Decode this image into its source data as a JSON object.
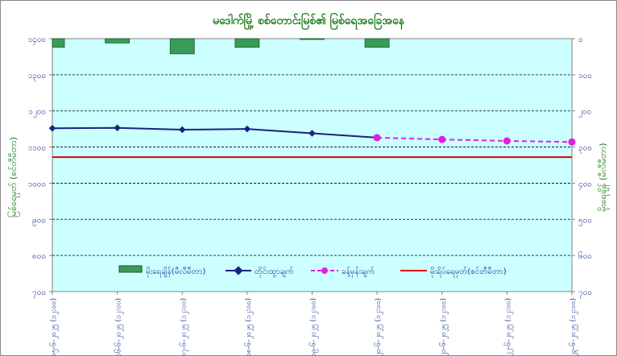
{
  "chart_data": {
    "type": "line",
    "title": "မဒေါက်မြို့ စစ်တောင်းမြစ်၏ မြစ်ရေအခြေအနေ",
    "ylabel_left": "မြစ်ရေမှတ် (စင်တီမီတာ)",
    "ylabel_right": "မိုးရေချိန် (မီလီမီတာ)",
    "y_left_ticks": [
      "၁၄၀၀",
      "၁၃၀၀",
      "၁၂၀၀",
      "၁၁၀၀",
      "၁၀၀၀",
      "၉၀၀",
      "၈၀၀",
      "၇၀၀"
    ],
    "y_right_ticks": [
      "၀",
      "၁၀၀",
      "၂၀၀",
      "၃၀၀",
      "၄၀၀",
      "၅၀၀",
      "၆၀၀",
      "၇၀၀"
    ],
    "y_left_range": [
      700,
      1400
    ],
    "y_right_range": [
      0,
      700
    ],
    "grid": true,
    "legend_placement": "bottom",
    "categories": [
      "၁၅-၆-၂၀၂၅ (၁၂:၀၀)",
      "၁၆-၆-၂၀၂၅ (၁၂:၀၀)",
      "၁၇-၆-၂၀၂၅ (၁၂:၀၀)",
      "၁၈-၆-၂၀၂၅ (၁၂:၀၀)",
      "၁၉-၆-၂၀၂၅ (၁၂:၀၀)",
      "၂၀-၆-၂၀၂၅ (၁၂:၀၀)",
      "၂၁-၆-၂၀၂၅ (၁၂:၀၀)",
      "၂၂-၆-၂၀၂၅ (၁၂:၀၀)",
      "၂၃-၆-၂၀၂၅ (၁၂:၀၀)"
    ],
    "series": [
      {
        "name": "မိုးရေချိန်(မီလီမီတာ)",
        "type": "bar",
        "axis": "right",
        "color": "#3a9a5a",
        "values": [
          24,
          12,
          42,
          24,
          2,
          24,
          null,
          null,
          null
        ]
      },
      {
        "name": "တိုင်းထွာချက်",
        "type": "line",
        "axis": "left",
        "color": "#1a237e",
        "values": [
          1152,
          1153,
          1148,
          1150,
          1138,
          1126,
          null,
          null,
          null
        ]
      },
      {
        "name": "ခန့်မှန်းချက်",
        "type": "line",
        "axis": "left",
        "color": "#e020e0",
        "dashed": true,
        "values": [
          null,
          null,
          null,
          null,
          null,
          1126,
          1121,
          1117,
          1114
        ]
      },
      {
        "name": "မိုးရိပ်ရေမှတ်(စင်တီမီတာ)",
        "type": "hline",
        "axis": "left",
        "color": "#e00000",
        "value": 1072
      }
    ]
  }
}
